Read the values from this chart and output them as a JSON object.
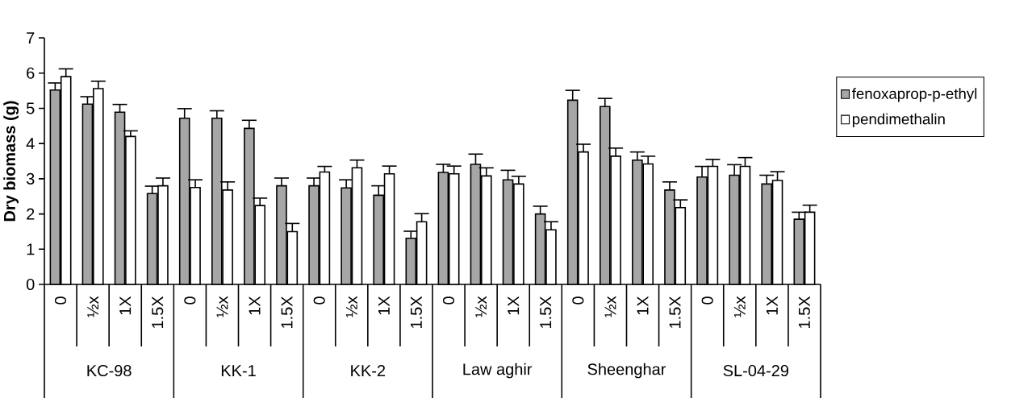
{
  "chart_data": {
    "type": "bar",
    "ylabel": "Dry biomass (g)",
    "categories": [
      "0",
      "½x",
      "1X",
      "1.5X",
      "0",
      "½x",
      "1X",
      "1.5X",
      "0",
      "½x",
      "1X",
      "1.5X",
      "0",
      "½x",
      "1X",
      "1.5X",
      "0",
      "½x",
      "1X",
      "1.5X",
      "0",
      "½x",
      "1X",
      "1.5X"
    ],
    "annotations": [
      "KC-98",
      "KK-1",
      "KK-2",
      "Law aghir",
      "Sheenghar",
      "SL-04-29"
    ],
    "series": [
      {
        "name": "fenoxaprop-p-ethyl",
        "color": "#a6a6a6",
        "values": [
          5.52,
          5.12,
          4.89,
          2.58,
          4.72,
          4.72,
          4.43,
          2.8,
          2.8,
          2.74,
          2.53,
          1.31,
          3.18,
          3.41,
          2.97,
          2.0,
          5.23,
          5.05,
          3.53,
          2.68,
          3.05,
          3.1,
          2.85,
          1.85
        ],
        "errors": [
          [
            5.52,
            5.72
          ],
          [
            5.12,
            5.33
          ],
          [
            4.89,
            5.11
          ],
          [
            2.58,
            2.79
          ],
          [
            4.72,
            4.99
          ],
          [
            4.72,
            4.93
          ],
          [
            4.43,
            4.66
          ],
          [
            2.8,
            3.02
          ],
          [
            2.8,
            3.02
          ],
          [
            2.74,
            2.97
          ],
          [
            2.53,
            2.8
          ],
          [
            1.31,
            1.51
          ],
          [
            3.18,
            3.41
          ],
          [
            3.41,
            3.7
          ],
          [
            2.97,
            3.24
          ],
          [
            2.0,
            2.22
          ],
          [
            5.23,
            5.51
          ],
          [
            5.05,
            5.28
          ],
          [
            3.53,
            3.76
          ],
          [
            2.68,
            2.91
          ],
          [
            3.05,
            3.35
          ],
          [
            3.1,
            3.4
          ],
          [
            2.85,
            3.1
          ],
          [
            1.85,
            2.05
          ]
        ]
      },
      {
        "name": "pendimethalin",
        "color": "#ffffff",
        "values": [
          5.9,
          5.56,
          4.2,
          2.8,
          2.75,
          2.68,
          2.24,
          1.5,
          3.19,
          3.31,
          3.14,
          1.78,
          3.14,
          3.08,
          2.85,
          1.55,
          3.76,
          3.64,
          3.42,
          2.18,
          3.35,
          3.35,
          2.95,
          2.05
        ],
        "errors": [
          [
            5.9,
            6.12
          ],
          [
            5.56,
            5.77
          ],
          [
            4.2,
            4.36
          ],
          [
            2.8,
            3.02
          ],
          [
            2.75,
            2.97
          ],
          [
            2.68,
            2.91
          ],
          [
            2.24,
            2.45
          ],
          [
            1.5,
            1.73
          ],
          [
            3.19,
            3.35
          ],
          [
            3.31,
            3.53
          ],
          [
            3.14,
            3.36
          ],
          [
            1.78,
            2.01
          ],
          [
            3.14,
            3.36
          ],
          [
            3.08,
            3.31
          ],
          [
            2.85,
            3.07
          ],
          [
            1.55,
            1.78
          ],
          [
            3.76,
            3.98
          ],
          [
            3.64,
            3.87
          ],
          [
            3.42,
            3.64
          ],
          [
            2.18,
            2.4
          ],
          [
            3.35,
            3.55
          ],
          [
            3.35,
            3.6
          ],
          [
            2.95,
            3.2
          ],
          [
            2.05,
            2.25
          ]
        ]
      }
    ],
    "ylim": [
      0,
      7
    ],
    "yticks": [
      0,
      1,
      2,
      3,
      4,
      5,
      6,
      7
    ],
    "legend": "right"
  }
}
